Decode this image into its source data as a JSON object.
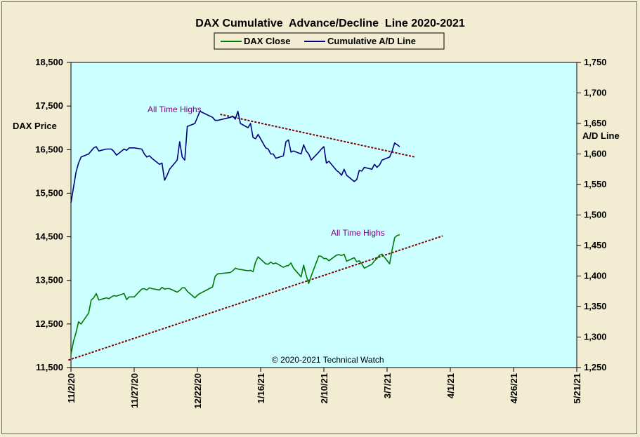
{
  "chart_data": {
    "type": "line",
    "title": "DAX Cumulative  Advance/Decline  Line 2020-2021",
    "legend": {
      "placement": "top-center",
      "entries": [
        {
          "name": "DAX Close",
          "color": "#007a00"
        },
        {
          "name": "Cumulative A/D Line",
          "color": "#000080"
        }
      ]
    },
    "y_left": {
      "label": "DAX Price",
      "min": 11500,
      "max": 18500,
      "ticks": [
        "11,500",
        "12,500",
        "13,500",
        "14,500",
        "15,500",
        "16,500",
        "17,500",
        "18,500"
      ]
    },
    "y_right": {
      "label": "A/D Line",
      "min": 1250,
      "max": 1750,
      "ticks": [
        "1,250",
        "1,300",
        "1,350",
        "1,400",
        "1,450",
        "1,500",
        "1,550",
        "1,600",
        "1,650",
        "1,700",
        "1,750"
      ]
    },
    "x_axis": {
      "start": "2020-11-02",
      "end": "2021-05-21",
      "ticks": [
        "11/2/20",
        "11/27/20",
        "12/22/20",
        "1/16/21",
        "2/10/21",
        "3/7/21",
        "4/1/21",
        "4/26/21",
        "5/21/21"
      ]
    },
    "background": "#ccffff",
    "series": [
      {
        "name": "DAX Close",
        "axis": "left",
        "color": "#007a00",
        "x": [
          "2020-11-02",
          "2020-11-03",
          "2020-11-04",
          "2020-11-05",
          "2020-11-06",
          "2020-11-09",
          "2020-11-10",
          "2020-11-11",
          "2020-11-12",
          "2020-11-13",
          "2020-11-16",
          "2020-11-17",
          "2020-11-18",
          "2020-11-19",
          "2020-11-20",
          "2020-11-23",
          "2020-11-24",
          "2020-11-25",
          "2020-11-26",
          "2020-11-27",
          "2020-11-30",
          "2020-12-01",
          "2020-12-02",
          "2020-12-03",
          "2020-12-04",
          "2020-12-07",
          "2020-12-08",
          "2020-12-09",
          "2020-12-10",
          "2020-12-11",
          "2020-12-14",
          "2020-12-15",
          "2020-12-16",
          "2020-12-17",
          "2020-12-18",
          "2020-12-21",
          "2020-12-22",
          "2020-12-23",
          "2020-12-28",
          "2020-12-29",
          "2020-12-30",
          "2021-01-04",
          "2021-01-05",
          "2021-01-06",
          "2021-01-07",
          "2021-01-08",
          "2021-01-11",
          "2021-01-12",
          "2021-01-13",
          "2021-01-14",
          "2021-01-15",
          "2021-01-18",
          "2021-01-19",
          "2021-01-20",
          "2021-01-21",
          "2021-01-22",
          "2021-01-25",
          "2021-01-26",
          "2021-01-27",
          "2021-01-28",
          "2021-01-29",
          "2021-02-01",
          "2021-02-02",
          "2021-02-03",
          "2021-02-04",
          "2021-02-05",
          "2021-02-08",
          "2021-02-09",
          "2021-02-10",
          "2021-02-11",
          "2021-02-12",
          "2021-02-15",
          "2021-02-16",
          "2021-02-17",
          "2021-02-18",
          "2021-02-19",
          "2021-02-22",
          "2021-02-23",
          "2021-02-24",
          "2021-02-25",
          "2021-02-26",
          "2021-03-01",
          "2021-03-02",
          "2021-03-03",
          "2021-03-04",
          "2021-03-05",
          "2021-03-08",
          "2021-03-09",
          "2021-03-10",
          "2021-03-11",
          "2021-03-12"
        ],
        "values": [
          11800,
          12100,
          12300,
          12550,
          12500,
          12750,
          13050,
          13100,
          13200,
          13050,
          13100,
          13080,
          13120,
          13150,
          13140,
          13200,
          13060,
          13120,
          13120,
          13120,
          13300,
          13310,
          13280,
          13330,
          13310,
          13280,
          13340,
          13300,
          13310,
          13310,
          13230,
          13270,
          13330,
          13330,
          13250,
          13100,
          13160,
          13200,
          13350,
          13590,
          13650,
          13680,
          13720,
          13780,
          13760,
          13750,
          13720,
          13730,
          13700,
          13920,
          14040,
          13880,
          13870,
          13920,
          13880,
          13900,
          13800,
          13830,
          13840,
          13900,
          13780,
          13580,
          13850,
          13620,
          13430,
          13600,
          14060,
          14050,
          14000,
          14000,
          13950,
          14080,
          14090,
          14070,
          14100,
          13940,
          14020,
          13930,
          13950,
          13880,
          13780,
          13870,
          13950,
          14000,
          14080,
          14100,
          13880,
          14200,
          14480,
          14530,
          14550
        ]
      },
      {
        "name": "Cumulative A/D Line",
        "axis": "right",
        "color": "#000080",
        "x": [
          "2020-11-02",
          "2020-11-03",
          "2020-11-04",
          "2020-11-05",
          "2020-11-06",
          "2020-11-09",
          "2020-11-10",
          "2020-11-11",
          "2020-11-12",
          "2020-11-13",
          "2020-11-16",
          "2020-11-17",
          "2020-11-18",
          "2020-11-19",
          "2020-11-20",
          "2020-11-23",
          "2020-11-24",
          "2020-11-25",
          "2020-11-26",
          "2020-11-27",
          "2020-11-30",
          "2020-12-01",
          "2020-12-02",
          "2020-12-03",
          "2020-12-04",
          "2020-12-07",
          "2020-12-08",
          "2020-12-09",
          "2020-12-10",
          "2020-12-11",
          "2020-12-14",
          "2020-12-15",
          "2020-12-16",
          "2020-12-17",
          "2020-12-18",
          "2020-12-21",
          "2020-12-22",
          "2020-12-23",
          "2020-12-28",
          "2020-12-29",
          "2020-12-30",
          "2021-01-04",
          "2021-01-05",
          "2021-01-06",
          "2021-01-07",
          "2021-01-08",
          "2021-01-11",
          "2021-01-12",
          "2021-01-13",
          "2021-01-14",
          "2021-01-15",
          "2021-01-18",
          "2021-01-19",
          "2021-01-20",
          "2021-01-21",
          "2021-01-22",
          "2021-01-25",
          "2021-01-26",
          "2021-01-27",
          "2021-01-28",
          "2021-01-29",
          "2021-02-01",
          "2021-02-02",
          "2021-02-03",
          "2021-02-04",
          "2021-02-05",
          "2021-02-08",
          "2021-02-09",
          "2021-02-10",
          "2021-02-11",
          "2021-02-12",
          "2021-02-15",
          "2021-02-16",
          "2021-02-17",
          "2021-02-18",
          "2021-02-19",
          "2021-02-22",
          "2021-02-23",
          "2021-02-24",
          "2021-02-25",
          "2021-02-26",
          "2021-03-01",
          "2021-03-02",
          "2021-03-03",
          "2021-03-04",
          "2021-03-05",
          "2021-03-08",
          "2021-03-09",
          "2021-03-10",
          "2021-03-11",
          "2021-03-12"
        ],
        "values": [
          1520,
          1545,
          1570,
          1585,
          1595,
          1600,
          1605,
          1610,
          1612,
          1605,
          1608,
          1608,
          1608,
          1604,
          1598,
          1608,
          1606,
          1610,
          1610,
          1610,
          1608,
          1600,
          1595,
          1597,
          1593,
          1583,
          1585,
          1557,
          1565,
          1575,
          1590,
          1620,
          1595,
          1590,
          1645,
          1650,
          1660,
          1670,
          1660,
          1655,
          1655,
          1660,
          1662,
          1657,
          1670,
          1650,
          1643,
          1650,
          1627,
          1625,
          1632,
          1610,
          1608,
          1600,
          1600,
          1593,
          1597,
          1620,
          1623,
          1603,
          1605,
          1600,
          1615,
          1605,
          1600,
          1590,
          1603,
          1608,
          1612,
          1585,
          1588,
          1573,
          1570,
          1565,
          1575,
          1565,
          1555,
          1558,
          1573,
          1572,
          1578,
          1575,
          1583,
          1578,
          1582,
          1590,
          1595,
          1605,
          1618,
          1615,
          1612
        ]
      }
    ],
    "trendlines": [
      {
        "axis": "right",
        "color": "#800000",
        "from": {
          "x": "2020-12-31",
          "y": 1665
        },
        "to": {
          "x": "2021-03-18",
          "y": 1595
        }
      },
      {
        "axis": "left",
        "color": "#800000",
        "from": {
          "x": "2020-11-01",
          "y": 11670
        },
        "to": {
          "x": "2021-03-29",
          "y": 14520
        }
      }
    ],
    "annotations": [
      {
        "text": "All Time Highs",
        "color": "#800080"
      },
      {
        "text": "All Time Highs",
        "color": "#800080"
      },
      {
        "text": "© 2020-2021  Technical Watch",
        "color": "#000000"
      }
    ]
  }
}
